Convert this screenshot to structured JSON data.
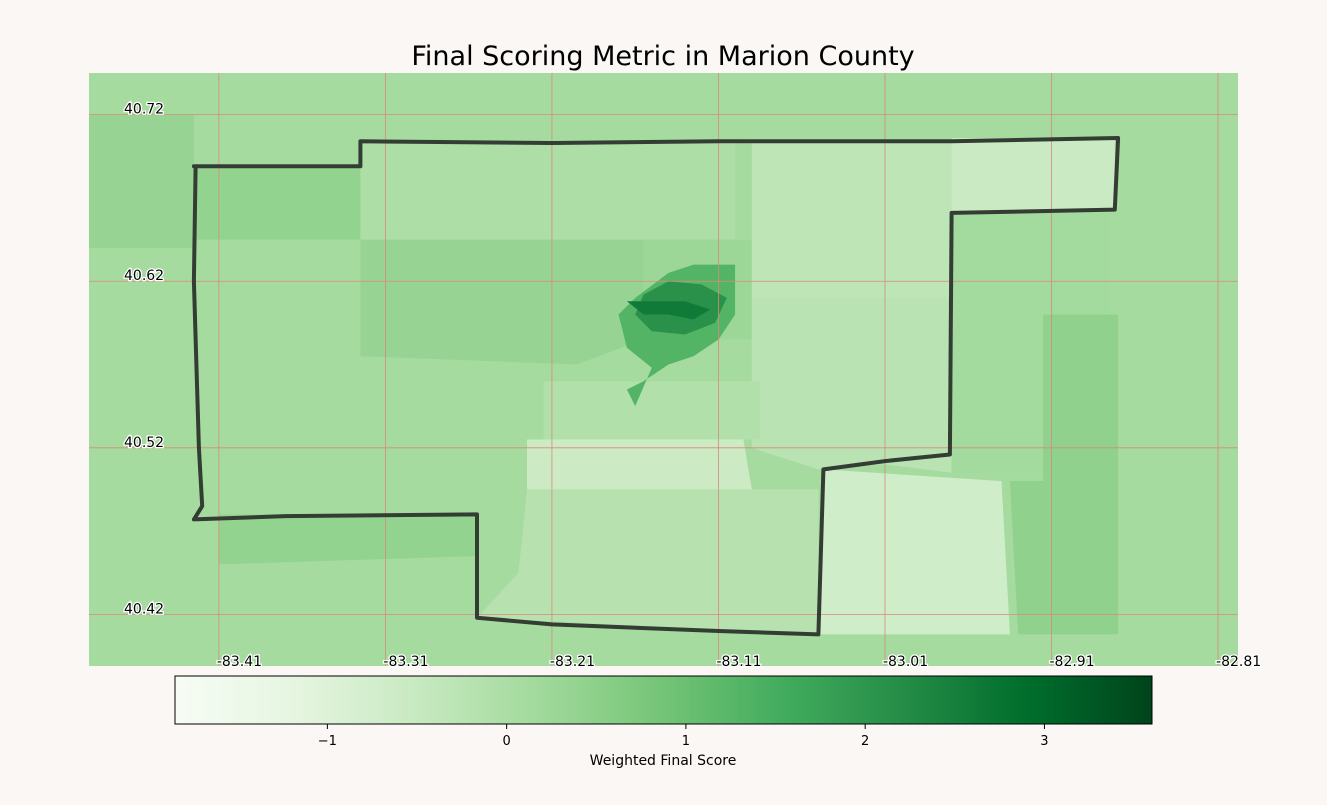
{
  "title": "Final Scoring Metric in Marion County",
  "colorbar": {
    "label": "Weighted Final Score",
    "min": -1.85,
    "max": 3.6,
    "colormap": "Greens",
    "ticks": [
      {
        "value": -1,
        "label": "−1"
      },
      {
        "value": 0,
        "label": "0"
      },
      {
        "value": 1,
        "label": "1"
      },
      {
        "value": 2,
        "label": "2"
      },
      {
        "value": 3,
        "label": "3"
      }
    ]
  },
  "map": {
    "county": "Marion County",
    "grid_color": "#d98a78",
    "boundary_color": "#333d33",
    "background_value": 0.1,
    "lon_range": [
      -83.488,
      -82.798
    ],
    "lat_range": [
      40.389,
      40.745
    ],
    "lon_ticks": [
      {
        "value": -83.41,
        "label": "-83.41"
      },
      {
        "value": -83.31,
        "label": "-83.31"
      },
      {
        "value": -83.21,
        "label": "-83.21"
      },
      {
        "value": -83.11,
        "label": "-83.11"
      },
      {
        "value": -83.01,
        "label": "-83.01"
      },
      {
        "value": -82.91,
        "label": "-82.91"
      },
      {
        "value": -82.81,
        "label": "-82.81"
      }
    ],
    "lat_ticks": [
      {
        "value": 40.72,
        "label": "40.72"
      },
      {
        "value": 40.62,
        "label": "40.62"
      },
      {
        "value": 40.52,
        "label": "40.52"
      },
      {
        "value": 40.42,
        "label": "40.42"
      }
    ],
    "boundary": [
      [
        -83.425,
        40.689
      ],
      [
        -83.37,
        40.689
      ],
      [
        -83.325,
        40.689
      ],
      [
        -83.325,
        40.704
      ],
      [
        -83.21,
        40.703
      ],
      [
        -83.11,
        40.704
      ],
      [
        -83.01,
        40.704
      ],
      [
        -82.97,
        40.704
      ],
      [
        -82.87,
        40.706
      ],
      [
        -82.872,
        40.663
      ],
      [
        -82.97,
        40.661
      ],
      [
        -82.971,
        40.516
      ],
      [
        -83.01,
        40.512
      ],
      [
        -83.047,
        40.507
      ],
      [
        -83.05,
        40.408
      ],
      [
        -83.11,
        40.41
      ],
      [
        -83.21,
        40.414
      ],
      [
        -83.255,
        40.418
      ],
      [
        -83.255,
        40.48
      ],
      [
        -83.37,
        40.479
      ],
      [
        -83.425,
        40.477
      ],
      [
        -83.42,
        40.485
      ],
      [
        -83.422,
        40.52
      ],
      [
        -83.425,
        40.62
      ],
      [
        -83.424,
        40.689
      ]
    ],
    "regions": [
      {
        "value": 0.35,
        "poly": [
          [
            -83.488,
            40.72
          ],
          [
            -83.425,
            40.72
          ],
          [
            -83.425,
            40.64
          ],
          [
            -83.488,
            40.64
          ]
        ]
      },
      {
        "value": 0.4,
        "poly": [
          [
            -83.425,
            40.689
          ],
          [
            -83.325,
            40.689
          ],
          [
            -83.325,
            40.645
          ],
          [
            -83.425,
            40.645
          ]
        ]
      },
      {
        "value": 0.0,
        "poly": [
          [
            -83.325,
            40.704
          ],
          [
            -83.1,
            40.704
          ],
          [
            -83.1,
            40.645
          ],
          [
            -83.325,
            40.645
          ]
        ]
      },
      {
        "value": 0.35,
        "poly": [
          [
            -83.325,
            40.645
          ],
          [
            -83.155,
            40.645
          ],
          [
            -83.155,
            40.585
          ],
          [
            -83.195,
            40.57
          ],
          [
            -83.325,
            40.575
          ]
        ]
      },
      {
        "value": 0.25,
        "poly": [
          [
            -83.155,
            40.645
          ],
          [
            -83.09,
            40.645
          ],
          [
            -83.09,
            40.585
          ],
          [
            -83.155,
            40.585
          ]
        ]
      },
      {
        "value": -0.3,
        "poly": [
          [
            -83.09,
            40.704
          ],
          [
            -82.97,
            40.704
          ],
          [
            -82.97,
            40.61
          ],
          [
            -83.09,
            40.61
          ]
        ]
      },
      {
        "value": -0.55,
        "poly": [
          [
            -82.97,
            40.706
          ],
          [
            -82.872,
            40.706
          ],
          [
            -82.872,
            40.663
          ],
          [
            -82.97,
            40.661
          ]
        ]
      },
      {
        "value": 0.15,
        "poly": [
          [
            -82.97,
            40.661
          ],
          [
            -82.875,
            40.661
          ],
          [
            -82.875,
            40.505
          ],
          [
            -82.97,
            40.505
          ]
        ]
      },
      {
        "value": 0.45,
        "poly": [
          [
            -82.915,
            40.6
          ],
          [
            -82.87,
            40.6
          ],
          [
            -82.87,
            40.408
          ],
          [
            -82.93,
            40.408
          ],
          [
            -82.935,
            40.5
          ],
          [
            -82.915,
            40.5
          ]
        ]
      },
      {
        "value": -0.25,
        "poly": [
          [
            -83.09,
            40.61
          ],
          [
            -82.97,
            40.61
          ],
          [
            -82.97,
            40.505
          ],
          [
            -83.01,
            40.51
          ],
          [
            -83.05,
            40.507
          ],
          [
            -83.09,
            40.52
          ]
        ]
      },
      {
        "value": -0.1,
        "poly": [
          [
            -83.215,
            40.56
          ],
          [
            -83.085,
            40.56
          ],
          [
            -83.085,
            40.525
          ],
          [
            -83.215,
            40.525
          ]
        ]
      },
      {
        "value": -0.6,
        "poly": [
          [
            -83.225,
            40.525
          ],
          [
            -83.095,
            40.525
          ],
          [
            -83.09,
            40.495
          ],
          [
            -83.225,
            40.495
          ]
        ]
      },
      {
        "value": -0.2,
        "poly": [
          [
            -83.225,
            40.495
          ],
          [
            -83.05,
            40.495
          ],
          [
            -83.05,
            40.408
          ],
          [
            -83.255,
            40.418
          ],
          [
            -83.23,
            40.445
          ]
        ]
      },
      {
        "value": -0.7,
        "poly": [
          [
            -83.047,
            40.507
          ],
          [
            -82.94,
            40.5
          ],
          [
            -82.935,
            40.408
          ],
          [
            -83.05,
            40.408
          ]
        ]
      },
      {
        "value": 0.4,
        "poly": [
          [
            -83.41,
            40.45
          ],
          [
            -83.255,
            40.455
          ],
          [
            -83.255,
            40.48
          ],
          [
            -83.41,
            40.48
          ]
        ]
      },
      {
        "value": 1.3,
        "poly": [
          [
            -83.17,
            40.6
          ],
          [
            -83.16,
            40.61
          ],
          [
            -83.14,
            40.625
          ],
          [
            -83.125,
            40.63
          ],
          [
            -83.1,
            40.63
          ],
          [
            -83.1,
            40.6
          ],
          [
            -83.11,
            40.585
          ],
          [
            -83.125,
            40.575
          ],
          [
            -83.14,
            40.57
          ],
          [
            -83.155,
            40.56
          ],
          [
            -83.165,
            40.555
          ],
          [
            -83.16,
            40.545
          ],
          [
            -83.15,
            40.568
          ],
          [
            -83.165,
            40.58
          ]
        ]
      },
      {
        "value": 2.1,
        "poly": [
          [
            -83.155,
            40.612
          ],
          [
            -83.14,
            40.62
          ],
          [
            -83.12,
            40.618
          ],
          [
            -83.105,
            40.61
          ],
          [
            -83.112,
            40.595
          ],
          [
            -83.13,
            40.588
          ],
          [
            -83.15,
            40.59
          ],
          [
            -83.16,
            40.6
          ]
        ]
      },
      {
        "value": 2.6,
        "poly": [
          [
            -83.165,
            40.608
          ],
          [
            -83.13,
            40.608
          ],
          [
            -83.115,
            40.603
          ],
          [
            -83.125,
            40.597
          ],
          [
            -83.14,
            40.6
          ],
          [
            -83.155,
            40.6
          ]
        ]
      }
    ]
  }
}
